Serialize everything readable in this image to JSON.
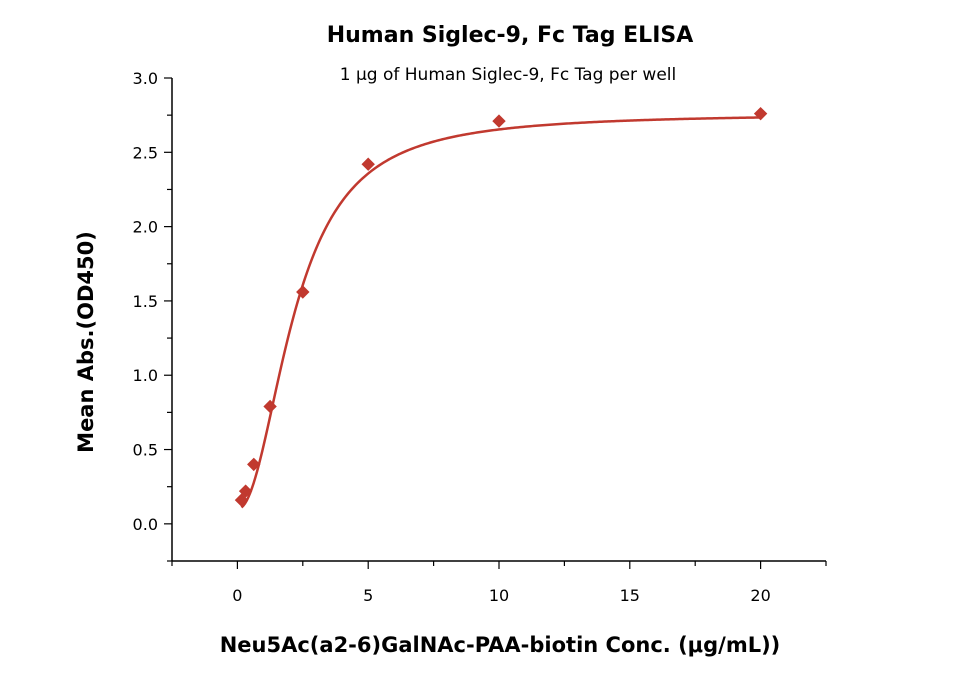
{
  "chart_data": {
    "type": "scatter",
    "title": "Human Siglec-9, Fc Tag ELISA",
    "subtitle": "1 μg of Human Siglec-9, Fc Tag per well",
    "xlabel": "Neu5Ac(a2-6)GalNAc-PAA-biotin Conc. (μg/mL))",
    "ylabel": "Mean Abs.(OD450)",
    "xlim": [
      -2.5,
      22.5
    ],
    "ylim": [
      -0.25,
      3.0
    ],
    "x_ticks": [
      "0",
      "5",
      "10",
      "15",
      "20"
    ],
    "y_ticks": [
      "0.0",
      "0.5",
      "1.0",
      "1.5",
      "2.0",
      "2.5",
      "3.0"
    ],
    "series": [
      {
        "x": [
          0.156,
          0.313,
          0.625,
          1.25,
          2.5,
          5,
          10,
          20
        ],
        "y": [
          0.16,
          0.22,
          0.4,
          0.79,
          1.56,
          2.42,
          2.71,
          2.76
        ],
        "marker": "diamond",
        "fit": "sigmoidal"
      }
    ],
    "color": "#c1392f",
    "grid": false,
    "legend": "none"
  }
}
